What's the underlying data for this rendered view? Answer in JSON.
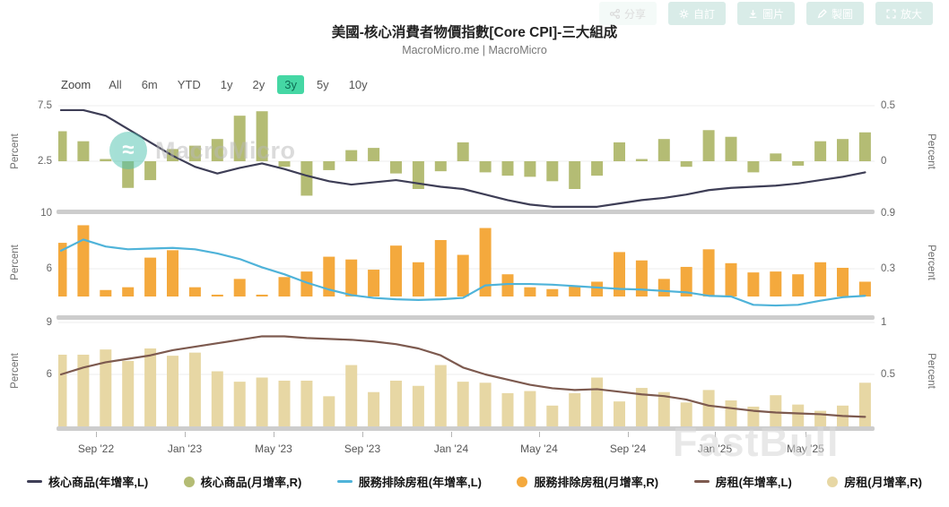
{
  "header": {
    "title": "美國-核心消費者物價指數[Core CPI]-三大組成",
    "subtitle": "MacroMicro.me | MacroMicro"
  },
  "toolbar": {
    "buttons": [
      {
        "label": "分享",
        "icon": "share-icon"
      },
      {
        "label": "自訂",
        "icon": "gear-icon"
      },
      {
        "label": "圖片",
        "icon": "download-icon"
      },
      {
        "label": "製圖",
        "icon": "pencil-icon"
      },
      {
        "label": "放大",
        "icon": "expand-icon"
      }
    ]
  },
  "zoom_controls": {
    "prefix": "Zoom",
    "options": [
      "All",
      "6m",
      "YTD",
      "1y",
      "2y",
      "3y",
      "5y",
      "10y"
    ],
    "selected": "3y"
  },
  "watermarks": {
    "chart_logo_text": "MacroMicro",
    "chart_logo_glyph": "≈",
    "corner": "FastBull"
  },
  "legend": {
    "items": [
      {
        "label": "核心商品(年增率,L)",
        "marker": "line",
        "color": "#3e3e56"
      },
      {
        "label": "核心商品(月增率,R)",
        "marker": "dot",
        "color": "#b4bc74"
      },
      {
        "label": "服務排除房租(年增率,L)",
        "marker": "line",
        "color": "#4fb3d9"
      },
      {
        "label": "服務排除房租(月增率,R)",
        "marker": "dot",
        "color": "#f4a93d"
      },
      {
        "label": "房租(年增率,L)",
        "marker": "line",
        "color": "#7d5a4f"
      },
      {
        "label": "房租(月增率,R)",
        "marker": "dot",
        "color": "#e7d7a4"
      }
    ]
  },
  "chart_data": {
    "type": "combo-multi-panel",
    "x_categories": [
      "Jul '22",
      "Aug '22",
      "Sep '22",
      "Oct '22",
      "Nov '22",
      "Dec '22",
      "Jan '23",
      "Feb '23",
      "Mar '23",
      "Apr '23",
      "May '23",
      "Jun '23",
      "Jul '23",
      "Aug '23",
      "Sep '23",
      "Oct '23",
      "Nov '23",
      "Dec '23",
      "Jan '24",
      "Feb '24",
      "Mar '24",
      "Apr '24",
      "May '24",
      "Jun '24",
      "Jul '24",
      "Aug '24",
      "Sep '24",
      "Oct '24",
      "Nov '24",
      "Dec '24",
      "Jan '25",
      "Feb '25",
      "Mar '25",
      "Apr '25",
      "May '25",
      "Jun '25",
      "Jul '25"
    ],
    "x_axis_labels": [
      "Sep '22",
      "Jan '23",
      "May '23",
      "Sep '23",
      "Jan '24",
      "May '24",
      "Sep '24",
      "Jan '25",
      "May '25"
    ],
    "panels": [
      {
        "name": "core-goods",
        "left_axis": {
          "label": "Percent",
          "ticks": [
            7.5,
            2.5
          ]
        },
        "right_axis": {
          "label": "Percent",
          "ticks": [
            0.5,
            0
          ]
        },
        "line": {
          "name": "核心商品(年增率,L)",
          "axis": "L",
          "color": "#3e3e56",
          "values": [
            7.1,
            7.1,
            6.6,
            5.4,
            4.2,
            3.0,
            2.0,
            1.4,
            1.9,
            2.3,
            1.8,
            1.2,
            0.7,
            0.4,
            0.6,
            0.8,
            0.5,
            0.2,
            0.0,
            -0.5,
            -1.0,
            -1.4,
            -1.6,
            -1.6,
            -1.6,
            -1.3,
            -1.0,
            -0.8,
            -0.5,
            -0.1,
            0.1,
            0.2,
            0.3,
            0.5,
            0.8,
            1.1,
            1.5
          ]
        },
        "bars": {
          "name": "核心商品(月增率,R)",
          "axis": "R",
          "color": "#b4bc74",
          "values": [
            0.27,
            0.18,
            0.02,
            -0.24,
            -0.17,
            0.11,
            0.14,
            0.2,
            0.41,
            0.45,
            -0.05,
            -0.31,
            -0.08,
            0.1,
            0.12,
            -0.11,
            -0.25,
            -0.09,
            0.17,
            -0.1,
            -0.13,
            -0.14,
            -0.18,
            -0.25,
            -0.13,
            0.17,
            0.02,
            0.2,
            -0.05,
            0.28,
            0.22,
            -0.1,
            0.07,
            -0.04,
            0.18,
            0.2,
            0.26
          ]
        }
      },
      {
        "name": "services-ex-rent",
        "left_axis": {
          "label": "Percent",
          "ticks": [
            10,
            6
          ]
        },
        "right_axis": {
          "label": "Percent",
          "ticks": [
            0.9,
            0.3
          ]
        },
        "line": {
          "name": "服務排除房租(年增率,L)",
          "axis": "L",
          "color": "#4fb3d9",
          "values": [
            7.3,
            8.1,
            7.6,
            7.4,
            7.45,
            7.5,
            7.4,
            7.1,
            6.7,
            6.1,
            5.6,
            5.0,
            4.5,
            4.1,
            3.9,
            3.8,
            3.75,
            3.8,
            3.9,
            4.8,
            4.9,
            4.9,
            4.85,
            4.75,
            4.65,
            4.55,
            4.5,
            4.4,
            4.3,
            4.05,
            4.0,
            3.4,
            3.35,
            3.4,
            3.7,
            3.95,
            4.05
          ]
        },
        "bars": {
          "name": "服務排除房租(月增率,R)",
          "axis": "R",
          "color": "#f4a93d",
          "values": [
            0.58,
            0.77,
            0.07,
            0.1,
            0.42,
            0.5,
            0.1,
            0.02,
            0.19,
            0.02,
            0.21,
            0.27,
            0.43,
            0.4,
            0.29,
            0.55,
            0.37,
            0.61,
            0.45,
            0.74,
            0.24,
            0.1,
            0.08,
            0.11,
            0.16,
            0.48,
            0.39,
            0.19,
            0.32,
            0.51,
            0.36,
            0.26,
            0.27,
            0.24,
            0.37,
            0.31,
            0.16
          ]
        }
      },
      {
        "name": "rent",
        "left_axis": {
          "label": "Percent",
          "ticks": [
            9,
            6
          ]
        },
        "right_axis": {
          "label": "Percent",
          "ticks": [
            1,
            0.5
          ]
        },
        "line": {
          "name": "房租(年增率,L)",
          "axis": "L",
          "color": "#7d5a4f",
          "values": [
            6.0,
            6.4,
            6.7,
            6.9,
            7.1,
            7.4,
            7.6,
            7.8,
            8.0,
            8.2,
            8.2,
            8.1,
            8.05,
            8.0,
            7.9,
            7.75,
            7.5,
            7.1,
            6.4,
            6.0,
            5.7,
            5.4,
            5.2,
            5.1,
            5.15,
            5.0,
            4.85,
            4.75,
            4.55,
            4.2,
            4.05,
            3.9,
            3.8,
            3.75,
            3.7,
            3.6,
            3.55
          ]
        },
        "bars": {
          "name": "房租(月增率,R)",
          "axis": "R",
          "color": "#e7d7a4",
          "values": [
            0.69,
            0.69,
            0.74,
            0.63,
            0.75,
            0.68,
            0.71,
            0.53,
            0.43,
            0.47,
            0.44,
            0.44,
            0.29,
            0.59,
            0.33,
            0.44,
            0.39,
            0.59,
            0.43,
            0.42,
            0.32,
            0.34,
            0.2,
            0.32,
            0.47,
            0.24,
            0.37,
            0.33,
            0.23,
            0.35,
            0.25,
            0.19,
            0.3,
            0.21,
            0.15,
            0.2,
            0.42
          ]
        }
      }
    ]
  }
}
